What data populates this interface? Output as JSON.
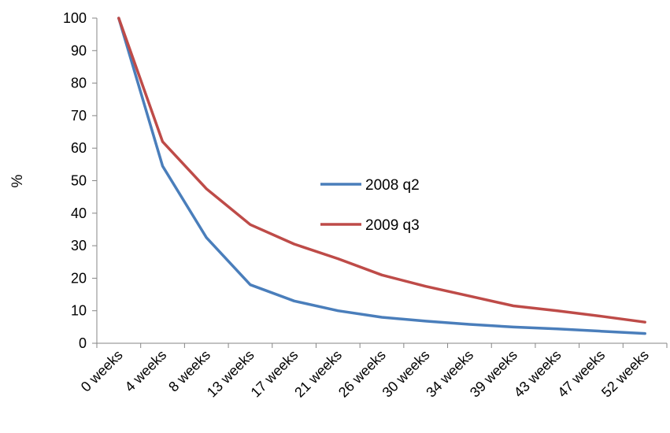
{
  "chart_data": {
    "type": "line",
    "title": "",
    "xlabel": "",
    "ylabel": "%",
    "ylim": [
      0,
      100
    ],
    "yticks": [
      0,
      10,
      20,
      30,
      40,
      50,
      60,
      70,
      80,
      90,
      100
    ],
    "categories": [
      "0 weeks",
      "4 weeks",
      "8 weeks",
      "13 weeks",
      "17 weeks",
      "21 weeks",
      "26 weeks",
      "30 weeks",
      "34 weeks",
      "39 weeks",
      "43 weeks",
      "47 weeks",
      "52 weeks"
    ],
    "grid": false,
    "legend": "center-right",
    "series": [
      {
        "name": "2008 q2",
        "color": "#4a7ebb",
        "values": [
          100,
          54.5,
          32.5,
          18,
          13,
          10,
          8,
          6.8,
          5.8,
          5,
          4.4,
          3.7,
          3
        ]
      },
      {
        "name": "2009 q3",
        "color": "#be4b48",
        "values": [
          100,
          62,
          47.5,
          36.5,
          30.5,
          26,
          21,
          17.5,
          14.5,
          11.5,
          10,
          8.3,
          6.5
        ]
      }
    ]
  }
}
